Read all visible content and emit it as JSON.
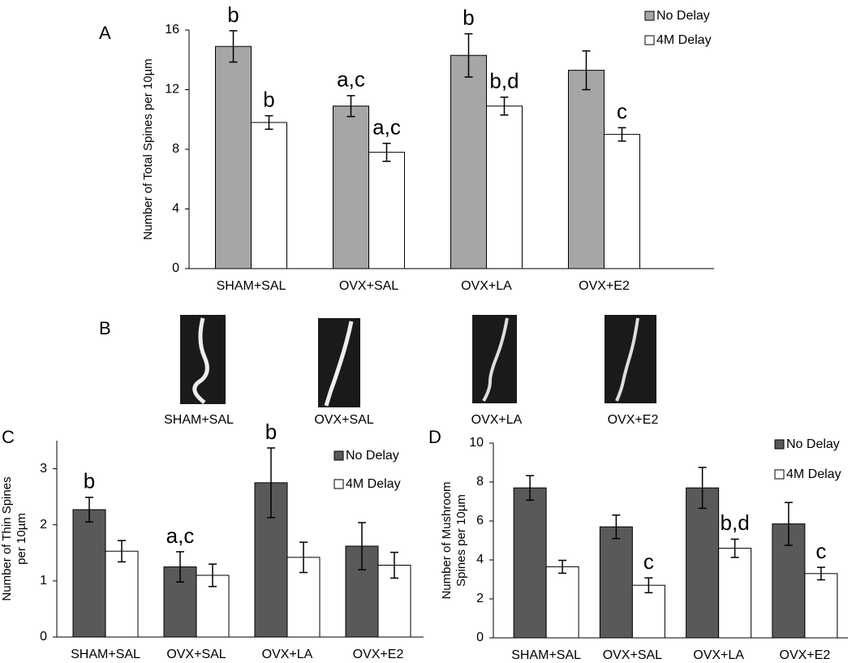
{
  "chart_data": [
    {
      "type": "bar",
      "panel": "A",
      "y_label": [
        "Number of Total Spines per 10µm"
      ],
      "categories": [
        "SHAM+SAL",
        "OVX+SAL",
        "OVX+LA",
        "OVX+E2"
      ],
      "ylim": [
        0,
        16
      ],
      "yticks": [
        0,
        4,
        8,
        12,
        16
      ],
      "series": [
        {
          "name": "No Delay",
          "color": "#a6a6a6",
          "values": [
            14.9,
            10.9,
            14.3,
            13.3
          ],
          "errors": [
            1.05,
            0.7,
            1.45,
            1.3
          ],
          "letters": [
            "b",
            "a,c",
            "b",
            null
          ]
        },
        {
          "name": "4M Delay",
          "color": "#ffffff",
          "values": [
            9.8,
            7.8,
            10.9,
            9.0
          ],
          "errors": [
            0.45,
            0.6,
            0.6,
            0.45
          ],
          "letters": [
            "b",
            "a,c",
            "b,d",
            "c"
          ]
        }
      ]
    },
    {
      "type": "bar",
      "panel": "C",
      "y_label": [
        "Number of Thin Spines",
        "per 10µm"
      ],
      "categories": [
        "SHAM+SAL",
        "OVX+SAL",
        "OVX+LA",
        "OVX+E2"
      ],
      "ylim": [
        0,
        3.5
      ],
      "yticks": [
        0,
        1,
        2,
        3
      ],
      "series": [
        {
          "name": "No Delay",
          "color": "#595959",
          "values": [
            2.27,
            1.25,
            2.75,
            1.62
          ],
          "errors": [
            0.22,
            0.27,
            0.62,
            0.42
          ],
          "letters": [
            "b",
            "a,c",
            "b",
            null
          ]
        },
        {
          "name": "4M Delay",
          "color": "#ffffff",
          "values": [
            1.53,
            1.1,
            1.42,
            1.28
          ],
          "errors": [
            0.19,
            0.2,
            0.27,
            0.23
          ]
        }
      ]
    },
    {
      "type": "bar",
      "panel": "D",
      "y_label": [
        "Number of Mushroom",
        "Spines per 10µm"
      ],
      "categories": [
        "SHAM+SAL",
        "OVX+SAL",
        "OVX+LA",
        "OVX+E2"
      ],
      "ylim": [
        0,
        10
      ],
      "yticks": [
        0,
        2,
        4,
        6,
        8,
        10
      ],
      "series": [
        {
          "name": "No Delay",
          "color": "#595959",
          "values": [
            7.7,
            5.7,
            7.7,
            5.85
          ],
          "errors": [
            0.63,
            0.6,
            1.05,
            1.1
          ]
        },
        {
          "name": "4M Delay",
          "color": "#ffffff",
          "values": [
            3.65,
            2.7,
            4.6,
            3.3
          ],
          "errors": [
            0.33,
            0.38,
            0.47,
            0.32
          ],
          "letters": [
            null,
            "c",
            "b,d",
            "c"
          ]
        }
      ]
    }
  ],
  "panel_b": {
    "panel": "B",
    "captions": [
      "SHAM+SAL",
      "OVX+SAL",
      "OVX+LA",
      "OVX+E2"
    ]
  }
}
